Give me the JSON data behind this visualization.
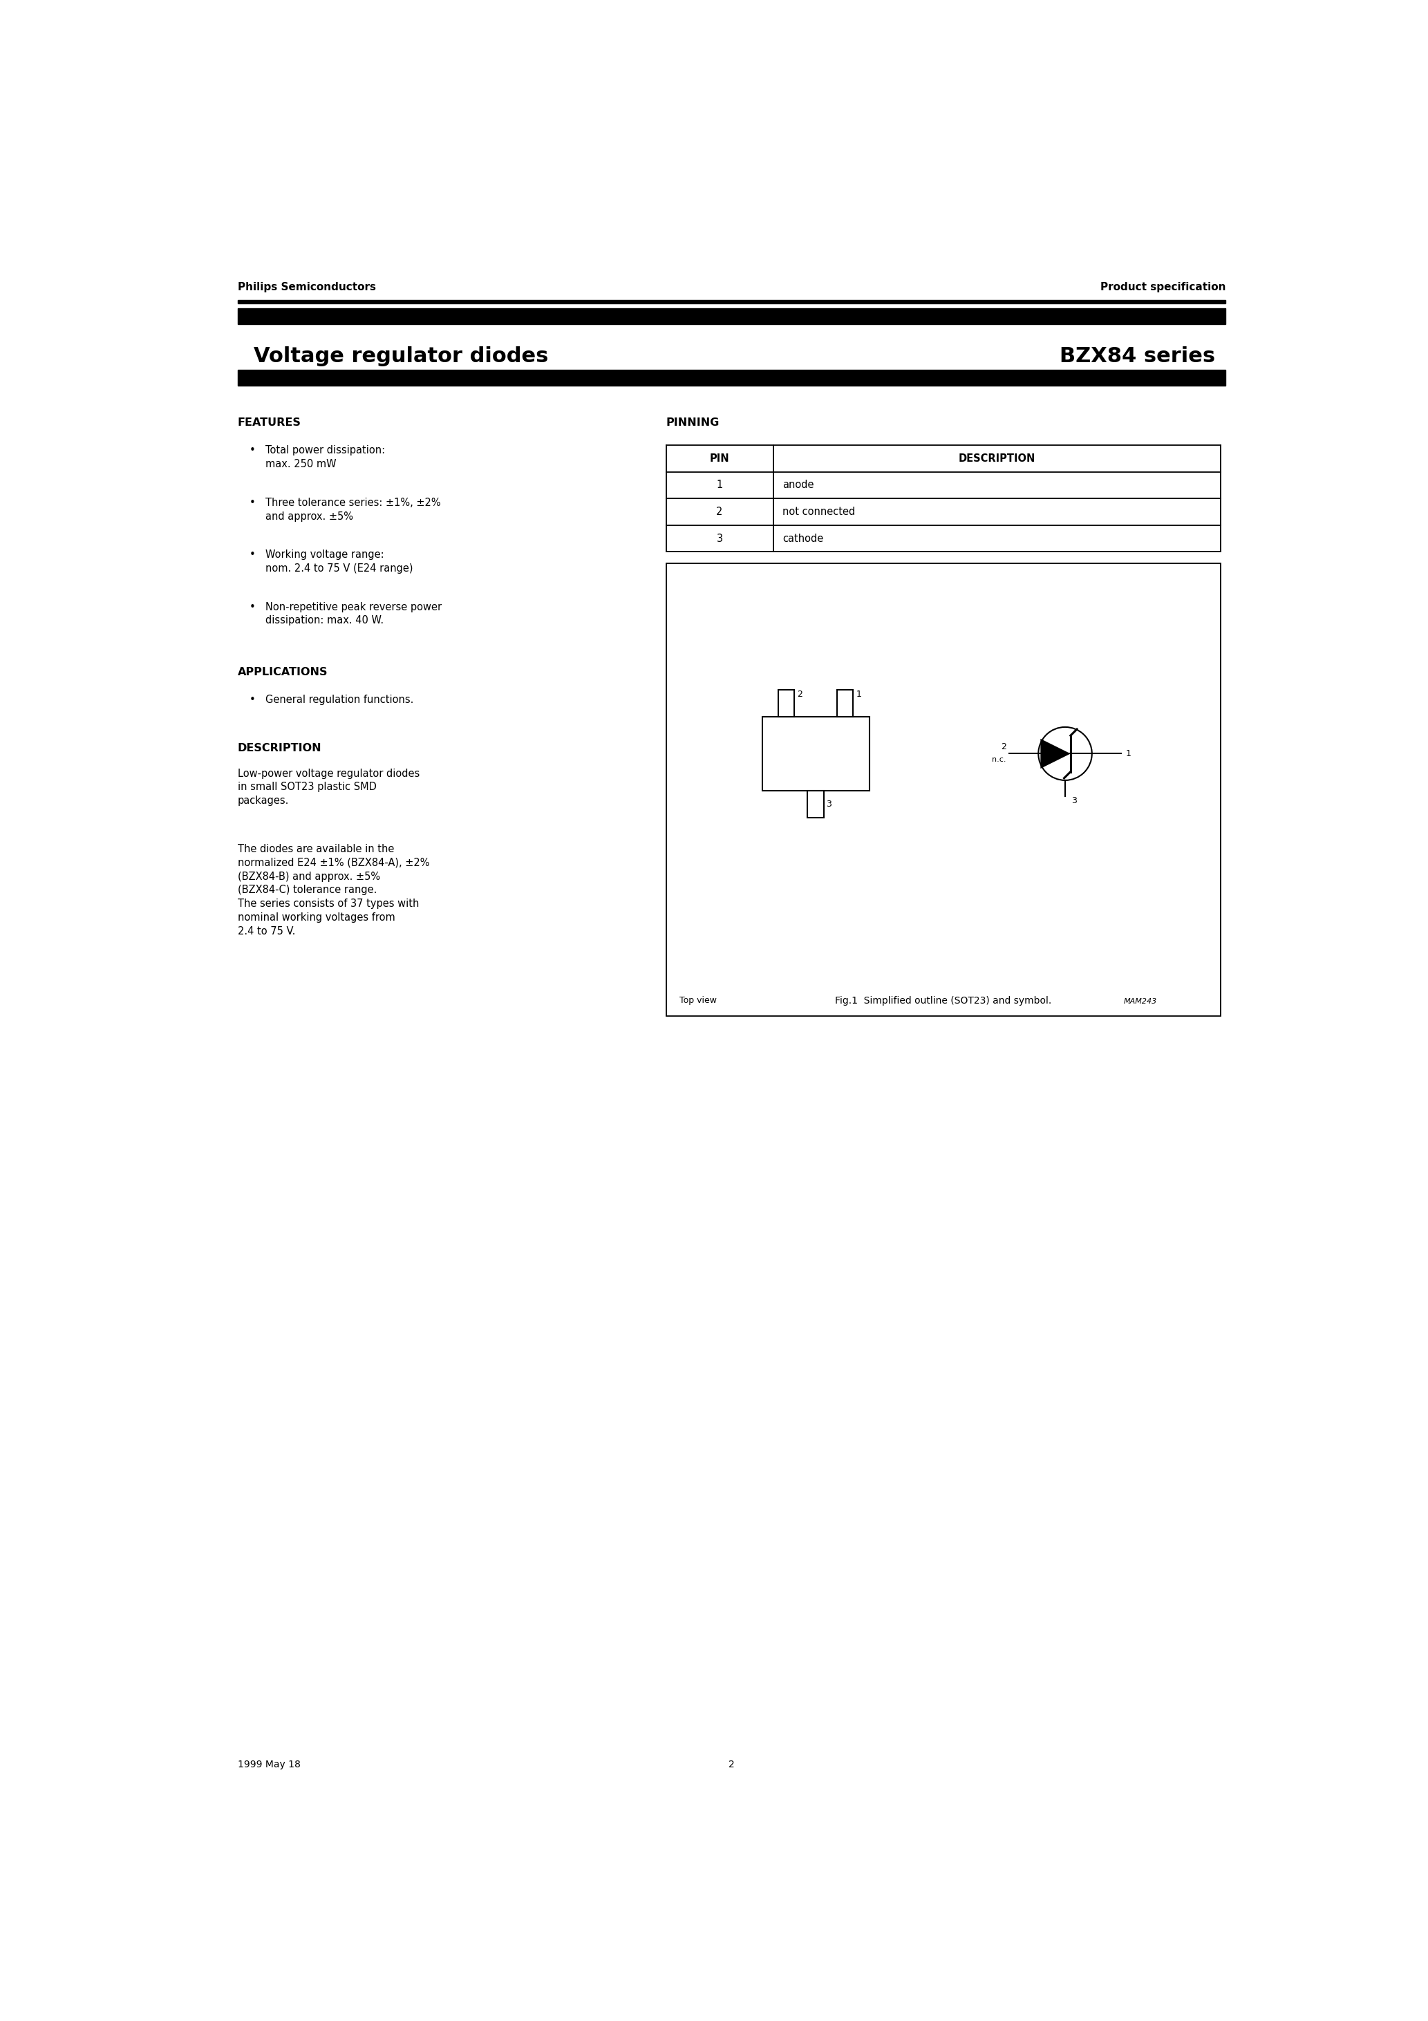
{
  "header_left": "Philips Semiconductors",
  "header_right": "Product specification",
  "title_left": "Voltage regulator diodes",
  "title_right": "BZX84 series",
  "section_features": "FEATURES",
  "features": [
    "Total power dissipation:\nmax. 250 mW",
    "Three tolerance series: ±1%, ±2%\nand approx. ±5%",
    "Working voltage range:\nnom. 2.4 to 75 V (E24 range)",
    "Non-repetitive peak reverse power\ndissipation: max. 40 W."
  ],
  "section_applications": "APPLICATIONS",
  "applications": [
    "General regulation functions."
  ],
  "section_description": "DESCRIPTION",
  "description_paras": [
    "Low-power voltage regulator diodes\nin small SOT23 plastic SMD\npackages.",
    "The diodes are available in the\nnormalized E24 ±1% (BZX84-A), ±2%\n(BZX84-B) and approx. ±5%\n(BZX84-C) tolerance range.\nThe series consists of 37 types with\nnominal working voltages from\n2.4 to 75 V."
  ],
  "section_pinning": "PINNING",
  "pin_header": [
    "PIN",
    "DESCRIPTION"
  ],
  "pins": [
    [
      "1",
      "anode"
    ],
    [
      "2",
      "not connected"
    ],
    [
      "3",
      "cathode"
    ]
  ],
  "fig_caption": "Fig.1  Simplified outline (SOT23) and symbol.",
  "footer_left": "1999 May 18",
  "footer_center": "2",
  "bg_color": "#ffffff",
  "text_color": "#000000"
}
